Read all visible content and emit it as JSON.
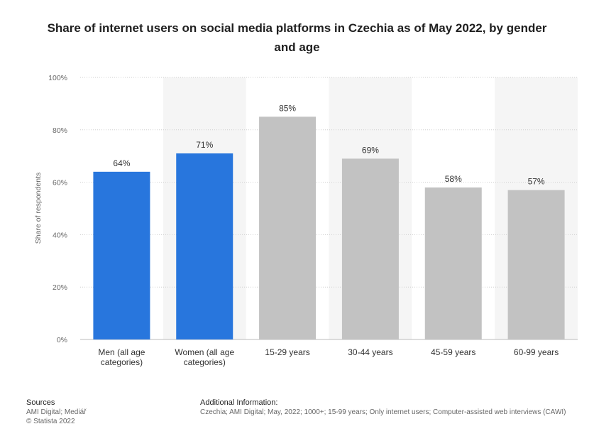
{
  "chart_data": {
    "type": "bar",
    "title": "Share of internet users on social media platforms in Czechia as of May 2022, by gender and age",
    "ylabel": "Share of respondents",
    "xlabel": "",
    "ylim": [
      0,
      100
    ],
    "yticks": [
      "0%",
      "20%",
      "40%",
      "60%",
      "80%",
      "100%"
    ],
    "categories": [
      [
        "Men (all age",
        "categories)"
      ],
      [
        "Women (all age",
        "categories)"
      ],
      [
        "15-29 years"
      ],
      [
        "30-44 years"
      ],
      [
        "45-59 years"
      ],
      [
        "60-99 years"
      ]
    ],
    "values": [
      64,
      71,
      85,
      69,
      58,
      57
    ],
    "data_labels": [
      "64%",
      "71%",
      "85%",
      "69%",
      "58%",
      "57%"
    ],
    "bar_colors": [
      "#2876dd",
      "#2876dd",
      "#c2c2c2",
      "#c2c2c2",
      "#c2c2c2",
      "#c2c2c2"
    ],
    "grid": true,
    "alternating_column_shading": true
  },
  "footer": {
    "sources_heading": "Sources",
    "sources_lines": [
      "AMI Digital; Mediář",
      "© Statista 2022"
    ],
    "additional_heading": "Additional Information:",
    "additional_text": "Czechia; AMI Digital; May, 2022; 1000+; 15-99 years; Only internet users; Computer-assisted web interviews (CAWI)"
  }
}
